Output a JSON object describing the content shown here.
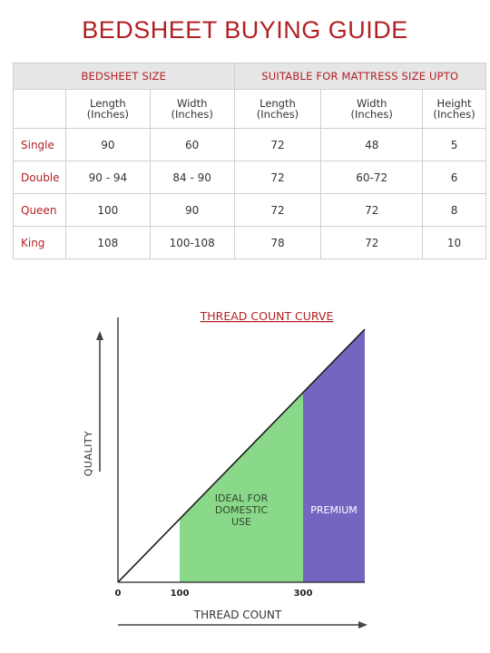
{
  "title": "BEDSHEET BUYING GUIDE",
  "table": {
    "groups": [
      "BEDSHEET SIZE",
      "SUITABLE FOR MATTRESS SIZE UPTO"
    ],
    "headers": [
      {
        "line1": "Length",
        "line2": "(Inches)"
      },
      {
        "line1": "Width",
        "line2": "(Inches)"
      },
      {
        "line1": "Length",
        "line2": "(Inches)"
      },
      {
        "line1": "Width",
        "line2": "(Inches)"
      },
      {
        "line1": "Height",
        "line2": "(Inches)"
      }
    ],
    "rows": [
      {
        "name": "Single",
        "cells": [
          "90",
          "60",
          "72",
          "48",
          "5"
        ]
      },
      {
        "name": "Double",
        "cells": [
          "90 - 94",
          "84 - 90",
          "72",
          "60-72",
          "6"
        ]
      },
      {
        "name": "Queen",
        "cells": [
          "100",
          "90",
          "72",
          "72",
          "8"
        ]
      },
      {
        "name": "King",
        "cells": [
          "108",
          "100-108",
          "78",
          "72",
          "10"
        ]
      }
    ]
  },
  "chart_data": {
    "type": "area",
    "title": "THREAD COUNT CURVE",
    "xlabel": "THREAD COUNT",
    "ylabel": "QUALITY",
    "x_ticks": [
      "0",
      "100",
      "300"
    ],
    "regions": [
      {
        "label_lines": [
          "IDEAL FOR",
          "DOMESTIC",
          "USE"
        ],
        "from": 100,
        "to": 300,
        "color": "#8ad88a"
      },
      {
        "label_lines": [
          "PREMIUM"
        ],
        "from": 300,
        "to": 400,
        "color": "#7466c0"
      }
    ],
    "line": {
      "x": [
        0,
        400
      ],
      "color": "#1a1a1a"
    },
    "title_color": "#b32024"
  }
}
